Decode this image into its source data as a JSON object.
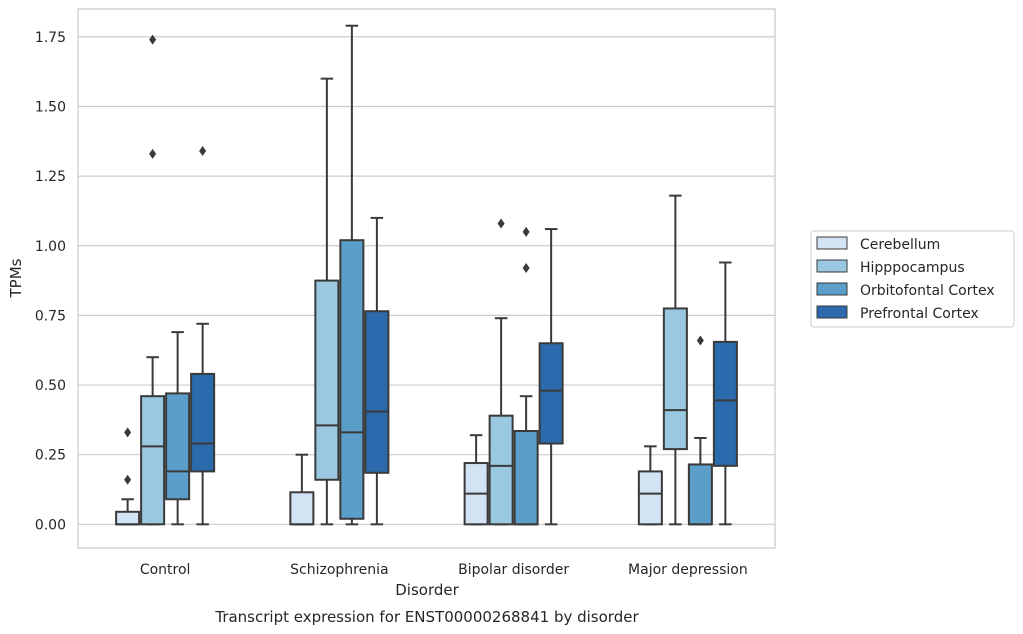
{
  "chart_data": {
    "type": "boxplot",
    "title": "",
    "xlabel": "Disorder",
    "ylabel": "TPMs",
    "caption": "Transcript expression for ENST00000268841 by disorder",
    "ylim": [
      -0.085,
      1.85
    ],
    "yticks": [
      "0.00",
      "0.25",
      "0.50",
      "0.75",
      "1.00",
      "1.25",
      "1.50",
      "1.75"
    ],
    "grid": "horizontal",
    "legend_position": "right",
    "categories": [
      "Control",
      "Schizophrenia",
      "Bipolar disorder",
      "Major depression"
    ],
    "series": [
      {
        "name": "Cerebellum",
        "color": "#d2e3f3",
        "boxes": [
          {
            "min": 0.0,
            "q1": 0.0,
            "median": 0.0,
            "q3": 0.045,
            "max": 0.09,
            "outliers": [
              0.16,
              0.33
            ]
          },
          {
            "min": 0.0,
            "q1": 0.0,
            "median": 0.0,
            "q3": 0.115,
            "max": 0.25,
            "outliers": []
          },
          {
            "min": 0.0,
            "q1": 0.0,
            "median": 0.11,
            "q3": 0.22,
            "max": 0.32,
            "outliers": []
          },
          {
            "min": 0.0,
            "q1": 0.0,
            "median": 0.11,
            "q3": 0.19,
            "max": 0.28,
            "outliers": []
          }
        ]
      },
      {
        "name": "Hipppocampus",
        "color": "#9ac8e0",
        "boxes": [
          {
            "min": 0.0,
            "q1": 0.0,
            "median": 0.28,
            "q3": 0.46,
            "max": 0.6,
            "outliers": [
              1.33,
              1.74
            ]
          },
          {
            "min": 0.0,
            "q1": 0.16,
            "median": 0.355,
            "q3": 0.875,
            "max": 1.6,
            "outliers": []
          },
          {
            "min": 0.0,
            "q1": 0.0,
            "median": 0.21,
            "q3": 0.39,
            "max": 0.74,
            "outliers": [
              1.08
            ]
          },
          {
            "min": 0.0,
            "q1": 0.27,
            "median": 0.41,
            "q3": 0.775,
            "max": 1.18,
            "outliers": []
          }
        ]
      },
      {
        "name": "Orbitofontal Cortex",
        "color": "#5a9ec9",
        "boxes": [
          {
            "min": 0.0,
            "q1": 0.09,
            "median": 0.19,
            "q3": 0.47,
            "max": 0.69,
            "outliers": []
          },
          {
            "min": 0.0,
            "q1": 0.02,
            "median": 0.33,
            "q3": 1.02,
            "max": 1.79,
            "outliers": []
          },
          {
            "min": 0.0,
            "q1": 0.0,
            "median": 0.0,
            "q3": 0.335,
            "max": 0.46,
            "outliers": [
              0.92,
              1.05
            ]
          },
          {
            "min": 0.0,
            "q1": 0.0,
            "median": 0.0,
            "q3": 0.215,
            "max": 0.31,
            "outliers": [
              0.66
            ]
          }
        ]
      },
      {
        "name": "Prefrontal Cortex",
        "color": "#2a6aad",
        "boxes": [
          {
            "min": 0.0,
            "q1": 0.19,
            "median": 0.29,
            "q3": 0.54,
            "max": 0.72,
            "outliers": [
              1.34
            ]
          },
          {
            "min": 0.0,
            "q1": 0.185,
            "median": 0.405,
            "q3": 0.765,
            "max": 1.1,
            "outliers": []
          },
          {
            "min": 0.0,
            "q1": 0.29,
            "median": 0.48,
            "q3": 0.65,
            "max": 1.06,
            "outliers": []
          },
          {
            "min": 0.0,
            "q1": 0.21,
            "median": 0.445,
            "q3": 0.655,
            "max": 0.94,
            "outliers": []
          }
        ]
      }
    ]
  }
}
